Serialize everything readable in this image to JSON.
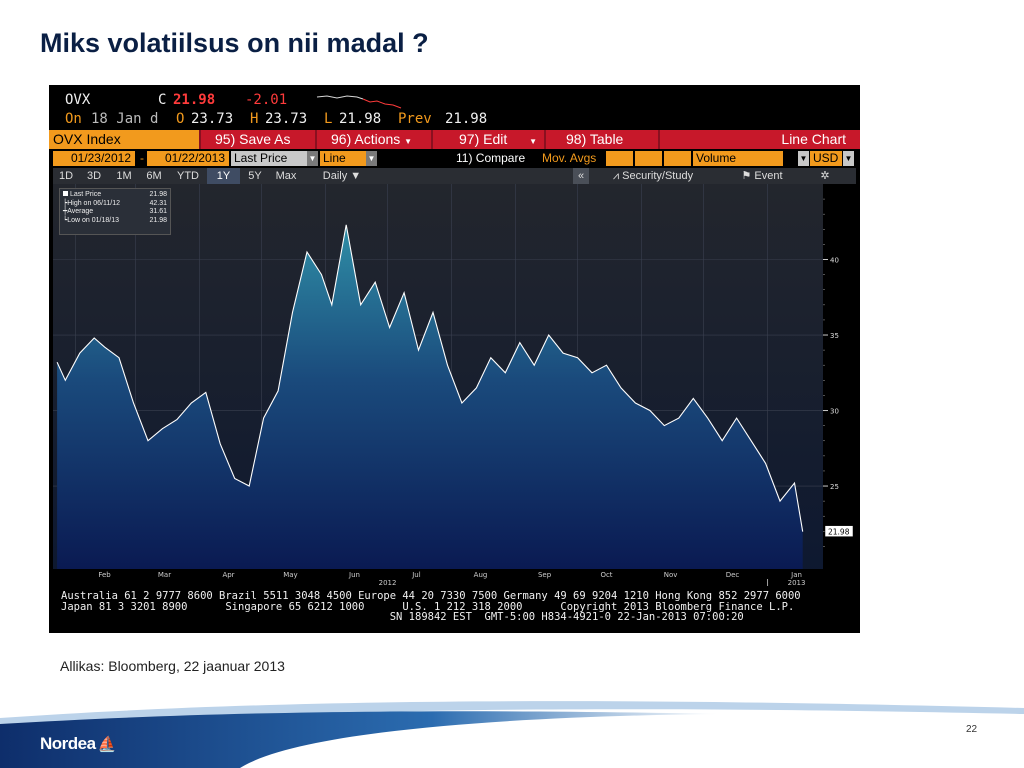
{
  "slide": {
    "title": "Miks volatiilsus on nii madal ?",
    "source": "Allikas: Bloomberg, 22 jaanuar 2013",
    "page_number": "22",
    "logo_text": "Nordea"
  },
  "terminal": {
    "quote": {
      "ticker": "OVX",
      "c_label": "C",
      "last": "21.98",
      "change": "-2.01",
      "on_label": "On",
      "date": "18 Jan",
      "d_label": "d",
      "o_label": "O",
      "open": "23.73",
      "h_label": "H",
      "high": "23.73",
      "l_label": "L",
      "low": "21.98",
      "prev_label": "Prev",
      "prev": "21.98"
    },
    "toolbar": {
      "ticker_box": "OVX Index",
      "save_as": "95) Save As",
      "actions": "96) Actions",
      "edit": "97) Edit",
      "table": "98) Table",
      "chart_type": "Line Chart"
    },
    "params": {
      "start_date": "01/23/2012",
      "dash": "-",
      "end_date": "01/22/2013",
      "field": "Last Price",
      "style": "Line",
      "compare": "11) Compare",
      "mov_avgs": "Mov. Avgs",
      "volume": "Volume",
      "currency": "USD"
    },
    "ranges": [
      "1D",
      "3D",
      "1M",
      "6M",
      "YTD",
      "1Y",
      "5Y",
      "Max"
    ],
    "selected_range": "1Y",
    "period": "Daily ▼",
    "collapse": "«",
    "security_study": "Security/Study",
    "event": "Event",
    "settings_glyph": "✲",
    "legend": [
      {
        "label": "Last Price",
        "value": "21.98"
      },
      {
        "label": "High on 06/11/12",
        "value": "42.31"
      },
      {
        "label": "Average",
        "value": "31.61"
      },
      {
        "label": "Low on 01/18/13",
        "value": "21.98"
      }
    ],
    "footer_lines": [
      "Australia 61 2 9777 8600 Brazil 5511 3048 4500 Europe 44 20 7330 7500 Germany 49 69 9204 1210 Hong Kong 852 2977 6000",
      "Japan 81 3 3201 8900      Singapore 65 6212 1000      U.S. 1 212 318 2000      Copyright 2013 Bloomberg Finance L.P.",
      "                                                    SN 189842 EST  GMT-5:00 H834-4921-0 22-Jan-2013 07:00:20"
    ]
  },
  "chart_data": {
    "type": "area",
    "title": "",
    "xlabel": "",
    "ylabel": "",
    "x_ticks": [
      "Feb",
      "Mar",
      "Apr",
      "May",
      "Jun",
      "Jul",
      "Aug",
      "Sep",
      "Oct",
      "Nov",
      "Dec",
      "Jan"
    ],
    "year_labels": [
      "2012",
      "2013"
    ],
    "y_ticks": [
      25,
      30,
      35,
      40
    ],
    "ylim": [
      20.5,
      45
    ],
    "last_value_label": "21.98",
    "grid": true,
    "x": [
      "2012-01-23",
      "2012-01-27",
      "2012-02-03",
      "2012-02-10",
      "2012-02-15",
      "2012-02-22",
      "2012-02-29",
      "2012-03-07",
      "2012-03-14",
      "2012-03-21",
      "2012-03-28",
      "2012-04-04",
      "2012-04-11",
      "2012-04-18",
      "2012-04-25",
      "2012-05-02",
      "2012-05-09",
      "2012-05-16",
      "2012-05-23",
      "2012-05-30",
      "2012-06-04",
      "2012-06-11",
      "2012-06-18",
      "2012-06-25",
      "2012-07-02",
      "2012-07-09",
      "2012-07-16",
      "2012-07-23",
      "2012-07-30",
      "2012-08-06",
      "2012-08-13",
      "2012-08-20",
      "2012-08-27",
      "2012-09-03",
      "2012-09-10",
      "2012-09-17",
      "2012-09-24",
      "2012-10-01",
      "2012-10-08",
      "2012-10-15",
      "2012-10-22",
      "2012-10-29",
      "2012-11-05",
      "2012-11-12",
      "2012-11-19",
      "2012-11-26",
      "2012-12-03",
      "2012-12-10",
      "2012-12-17",
      "2012-12-24",
      "2012-12-31",
      "2013-01-07",
      "2013-01-14",
      "2013-01-18"
    ],
    "series": [
      {
        "values": [
          33.2,
          32.0,
          33.8,
          34.8,
          34.2,
          33.5,
          30.5,
          28.0,
          28.8,
          29.4,
          30.5,
          31.2,
          27.8,
          25.5,
          25.0,
          29.5,
          31.3,
          36.5,
          40.5,
          39.0,
          37.0,
          42.3,
          37.0,
          38.5,
          35.5,
          37.8,
          34.0,
          36.5,
          33.0,
          30.5,
          31.5,
          33.5,
          32.5,
          34.5,
          33.0,
          35.0,
          33.8,
          33.5,
          32.5,
          33.0,
          31.5,
          30.5,
          30.0,
          29.0,
          29.5,
          30.8,
          29.5,
          28.0,
          29.5,
          28.0,
          26.5,
          24.0,
          25.2,
          21.98
        ]
      }
    ]
  }
}
